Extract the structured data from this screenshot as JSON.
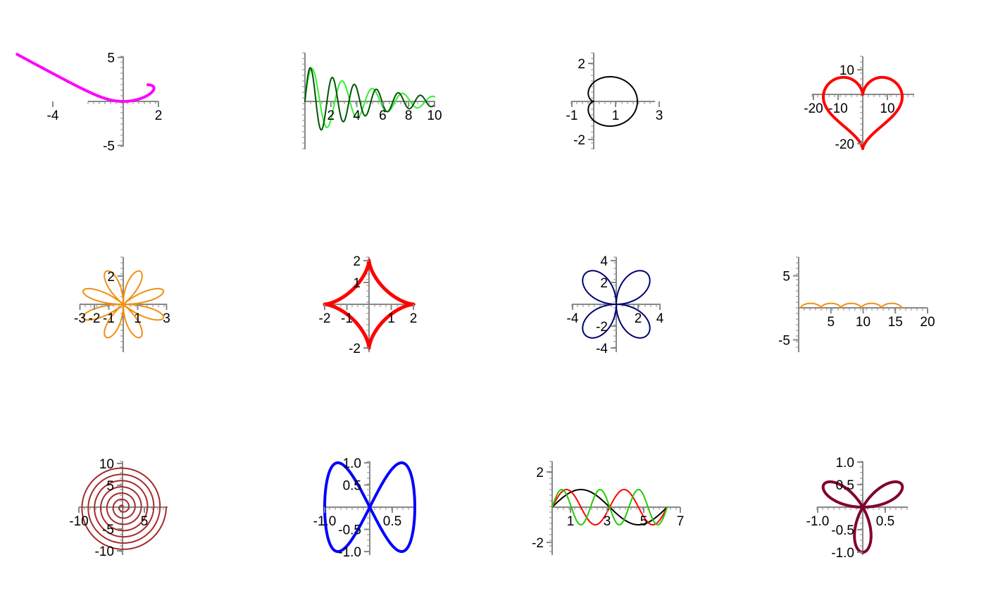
{
  "colors": {
    "axis": "#888888"
  },
  "chart_data": [
    {
      "type": "line",
      "title": "",
      "curve": "folium",
      "xlim": [
        -4,
        2
      ],
      "ylim": [
        -5,
        5
      ],
      "x_ticks": [
        "-4",
        "2"
      ],
      "y_ticks": [
        "5",
        "-5"
      ],
      "series": [
        {
          "color": "#ff00ff",
          "width": 4
        }
      ]
    },
    {
      "type": "line",
      "title": "",
      "curve": "damped_sines",
      "xlim": [
        0,
        10
      ],
      "ylim": [
        -1,
        1
      ],
      "x_ticks": [
        "2",
        "4",
        "6",
        "8",
        "10"
      ],
      "y_ticks": [],
      "series": [
        {
          "color": "#33ee33",
          "width": 2
        },
        {
          "color": "#005500",
          "width": 2
        }
      ]
    },
    {
      "type": "line",
      "title": "",
      "curve": "cardioid",
      "xlim": [
        -1,
        3
      ],
      "ylim": [
        -2,
        2
      ],
      "x_ticks": [
        "-1",
        "1",
        "3"
      ],
      "y_ticks": [
        "2",
        "-2"
      ],
      "series": [
        {
          "color": "#000000",
          "width": 2
        }
      ]
    },
    {
      "type": "line",
      "title": "",
      "curve": "heart",
      "xlim": [
        -20,
        10
      ],
      "ylim": [
        -20,
        10
      ],
      "x_ticks": [
        "-20",
        "-10",
        "10"
      ],
      "y_ticks": [
        "10",
        "-20"
      ],
      "series": [
        {
          "color": "#ff0000",
          "width": 4
        }
      ]
    },
    {
      "type": "line",
      "title": "",
      "curve": "rose_8",
      "xlim": [
        -3,
        3
      ],
      "ylim": [
        -2,
        2
      ],
      "x_ticks": [
        "-3",
        "-2",
        "-1",
        "1",
        "3"
      ],
      "y_ticks": [
        "2"
      ],
      "series": [
        {
          "color": "#f09010",
          "width": 2
        }
      ]
    },
    {
      "type": "line",
      "title": "",
      "curve": "astroid",
      "xlim": [
        -2,
        2
      ],
      "ylim": [
        -2,
        2
      ],
      "x_ticks": [
        "-2",
        "-1",
        "1",
        "2"
      ],
      "y_ticks": [
        "2",
        "1",
        "-2"
      ],
      "series": [
        {
          "color": "#ff0000",
          "width": 5
        }
      ]
    },
    {
      "type": "line",
      "title": "",
      "curve": "rose_4",
      "xlim": [
        -4,
        4
      ],
      "ylim": [
        -4,
        4
      ],
      "x_ticks": [
        "-4",
        "2",
        "4"
      ],
      "y_ticks": [
        "4",
        "2",
        "-2",
        "-4"
      ],
      "series": [
        {
          "color": "#000070",
          "width": 2
        }
      ]
    },
    {
      "type": "line",
      "title": "",
      "curve": "cycloid",
      "xlim": [
        0,
        20
      ],
      "ylim": [
        -5,
        5
      ],
      "x_ticks": [
        "5",
        "10",
        "15",
        "20"
      ],
      "y_ticks": [
        "5",
        "-5"
      ],
      "series": [
        {
          "color": "#f09010",
          "width": 2
        }
      ]
    },
    {
      "type": "line",
      "title": "",
      "curve": "spiral",
      "xlim": [
        -10,
        10
      ],
      "ylim": [
        -10,
        10
      ],
      "x_ticks": [
        "-10",
        "5"
      ],
      "y_ticks": [
        "10",
        "5",
        "-5",
        "-10"
      ],
      "series": [
        {
          "color": "#a52a2a",
          "width": 2
        }
      ]
    },
    {
      "type": "line",
      "title": "",
      "curve": "lissajous_8",
      "xlim": [
        -1,
        1
      ],
      "ylim": [
        -1,
        1
      ],
      "x_ticks": [
        "-1.0",
        "0.5"
      ],
      "y_ticks": [
        "1.0",
        "0.5",
        "-0.5",
        "-1.0"
      ],
      "series": [
        {
          "color": "#0000ff",
          "width": 4
        }
      ]
    },
    {
      "type": "line",
      "title": "",
      "curve": "sine_harmonics",
      "xlim": [
        0,
        7
      ],
      "ylim": [
        -2,
        2
      ],
      "x_ticks": [
        "1",
        "3",
        "5",
        "7"
      ],
      "y_ticks": [
        "2",
        "-2"
      ],
      "series": [
        {
          "color": "#000000",
          "width": 2
        },
        {
          "color": "#ff0000",
          "width": 2
        },
        {
          "color": "#22cc00",
          "width": 2
        }
      ]
    },
    {
      "type": "line",
      "title": "",
      "curve": "rose_3",
      "xlim": [
        -1,
        1
      ],
      "ylim": [
        -1,
        1
      ],
      "x_ticks": [
        "-1.0",
        "0.5"
      ],
      "y_ticks": [
        "1.0",
        "0.5",
        "-0.5",
        "-1.0"
      ],
      "series": [
        {
          "color": "#800030",
          "width": 4
        }
      ]
    }
  ]
}
